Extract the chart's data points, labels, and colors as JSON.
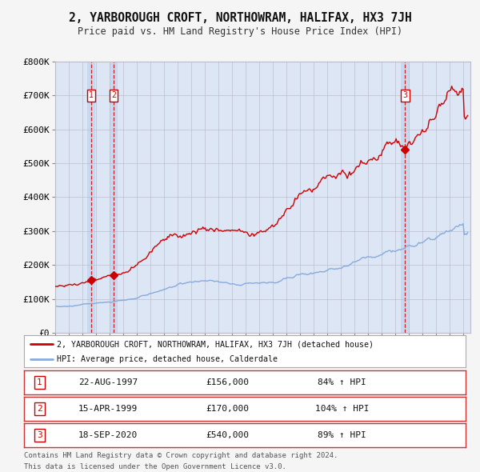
{
  "title": "2, YARBOROUGH CROFT, NORTHOWRAM, HALIFAX, HX3 7JH",
  "subtitle": "Price paid vs. HM Land Registry's House Price Index (HPI)",
  "red_label": "2, YARBOROUGH CROFT, NORTHOWRAM, HALIFAX, HX3 7JH (detached house)",
  "blue_label": "HPI: Average price, detached house, Calderdale",
  "transactions": [
    {
      "num": 1,
      "date": "22-AUG-1997",
      "year": 1997.64,
      "price": 156000,
      "pct": "84%",
      "dir": "↑"
    },
    {
      "num": 2,
      "date": "15-APR-1999",
      "year": 1999.29,
      "price": 170000,
      "pct": "104%",
      "dir": "↑"
    },
    {
      "num": 3,
      "date": "18-SEP-2020",
      "year": 2020.71,
      "price": 540000,
      "pct": "89%",
      "dir": "↑"
    }
  ],
  "ylim": [
    0,
    800000
  ],
  "yticks": [
    0,
    100000,
    200000,
    300000,
    400000,
    500000,
    600000,
    700000,
    800000
  ],
  "ytick_labels": [
    "£0",
    "£100K",
    "£200K",
    "£300K",
    "£400K",
    "£500K",
    "£600K",
    "£700K",
    "£800K"
  ],
  "xlim_start": 1995.0,
  "xlim_end": 2025.5,
  "footer_line1": "Contains HM Land Registry data © Crown copyright and database right 2024.",
  "footer_line2": "This data is licensed under the Open Government Licence v3.0.",
  "red_color": "#cc0000",
  "blue_color": "#88aadd",
  "vline_color": "#cc0000",
  "plot_bg_color": "#dce6f5",
  "shade_color": "#c8d8ee",
  "fig_bg_color": "#f5f5f5"
}
